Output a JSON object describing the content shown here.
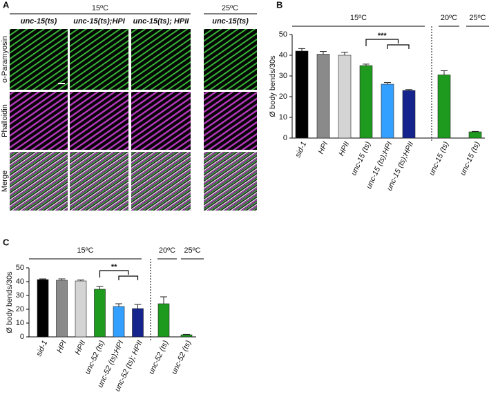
{
  "panel_labels": [
    "A",
    "B",
    "C"
  ],
  "panel_a": {
    "groups": [
      "15ºC",
      "25ºC"
    ],
    "columns": [
      "unc-15(ts)",
      "unc-15(ts);HPI",
      "unc-15(ts); HPII",
      "unc-15(ts)"
    ],
    "rows": [
      "α-Paramyosin",
      "Phalloidin",
      "Merge"
    ]
  },
  "chart_data": [
    {
      "type": "bar",
      "y_label": "Ø body bends/30s",
      "groups": [
        "15ºC",
        "20ºC",
        "25ºC"
      ],
      "significance": "***",
      "categories": [
        "sid-1",
        "HPI",
        "HPII",
        "unc-15 (ts)",
        "unc-15 (ts);HPI",
        "unc-15 (ts);HPII",
        "unc-15 (ts)",
        "unc-15 (ts)"
      ],
      "values": [
        42,
        40.5,
        40,
        35,
        26,
        23,
        30.5,
        3
      ],
      "errors": [
        1.2,
        1.3,
        1.5,
        0.7,
        0.8,
        0.4,
        2,
        0.2
      ],
      "colors": [
        "#000000",
        "#8a8a8a",
        "#d4d4d4",
        "#1e9a1e",
        "#33a0ff",
        "#14248c",
        "#1e9a1e",
        "#1e9a1e"
      ],
      "ylim": [
        0,
        50
      ],
      "yticks": [
        0,
        10,
        20,
        30,
        40,
        50
      ]
    },
    {
      "type": "bar",
      "y_label": "Ø body bends/30s",
      "groups": [
        "15ºC",
        "20ºC",
        "25ºC"
      ],
      "significance": "**",
      "categories": [
        "sid-1",
        "HPI",
        "HPII",
        "unc-52 (ts)",
        "unc-52 (ts);HPI",
        "unc-52 (ts); HPII",
        "unc-52 (ts)",
        "unc-52 (ts)"
      ],
      "values": [
        41.5,
        41,
        40.5,
        34.5,
        22,
        20.5,
        24,
        1.5
      ],
      "errors": [
        0.5,
        1,
        0.7,
        2,
        2,
        3,
        5,
        0.3
      ],
      "colors": [
        "#000000",
        "#8a8a8a",
        "#d4d4d4",
        "#1e9a1e",
        "#33a0ff",
        "#14248c",
        "#1e9a1e",
        "#1e9a1e"
      ],
      "ylim": [
        0,
        50
      ],
      "yticks": [
        0,
        10,
        20,
        30,
        40,
        50
      ]
    }
  ]
}
